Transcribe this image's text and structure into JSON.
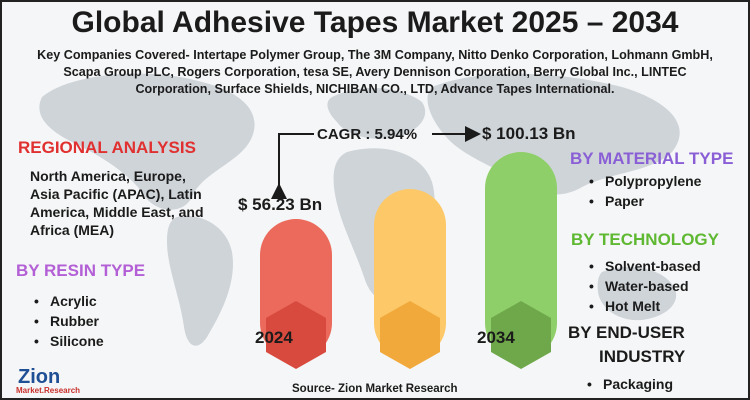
{
  "title": "Global Adhesive Tapes Market 2025 – 2034",
  "companies": "Key Companies Covered- Intertape Polymer Group, The 3M Company, Nitto Denko Corporation, Lohmann GmbH, Scapa Group PLC, Rogers Corporation, tesa SE, Avery Dennison Corporation, Berry Global Inc., LINTEC Corporation, Surface Shields, NICHIBAN CO., LTD, Advance Tapes International.",
  "regional": {
    "heading": "REGIONAL ANALYSIS",
    "text": "North America, Europe, Asia Pacific (APAC), Latin America, Middle East, and Africa (MEA)",
    "color": "#e03030"
  },
  "resin": {
    "heading": "BY RESIN TYPE",
    "items": [
      "Acrylic",
      "Rubber",
      "Silicone"
    ],
    "color": "#b35fd6"
  },
  "material": {
    "heading": "BY MATERIAL TYPE",
    "items": [
      "Polypropylene",
      "Paper"
    ],
    "color": "#8a5fd6"
  },
  "technology": {
    "heading": "BY TECHNOLOGY",
    "items": [
      "Solvent-based",
      "Water-based",
      "Hot Melt"
    ],
    "color": "#5fb832"
  },
  "enduser": {
    "heading1": "BY END-USER",
    "heading2": "INDUSTRY",
    "items": [
      "Packaging"
    ],
    "color": "#1b1b1b"
  },
  "cagr": "CAGR : 5.94%",
  "value_2024": "$ 56.23 Bn",
  "value_2034": "$ 100.13 Bn",
  "year_start": "2024",
  "year_end": "2034",
  "logo": {
    "brand": "Zion",
    "sub": "Market.Research"
  },
  "source": "Source- Zion Market Research",
  "colors": {
    "red_bar": "#eb6a5c",
    "red_hex": "#d84a3e",
    "yellow_bar": "#fcc868",
    "yellow_hex": "#f2a93b",
    "green_bar": "#8fcf6a",
    "green_hex": "#6ea84a",
    "map": "#c9ced4"
  }
}
